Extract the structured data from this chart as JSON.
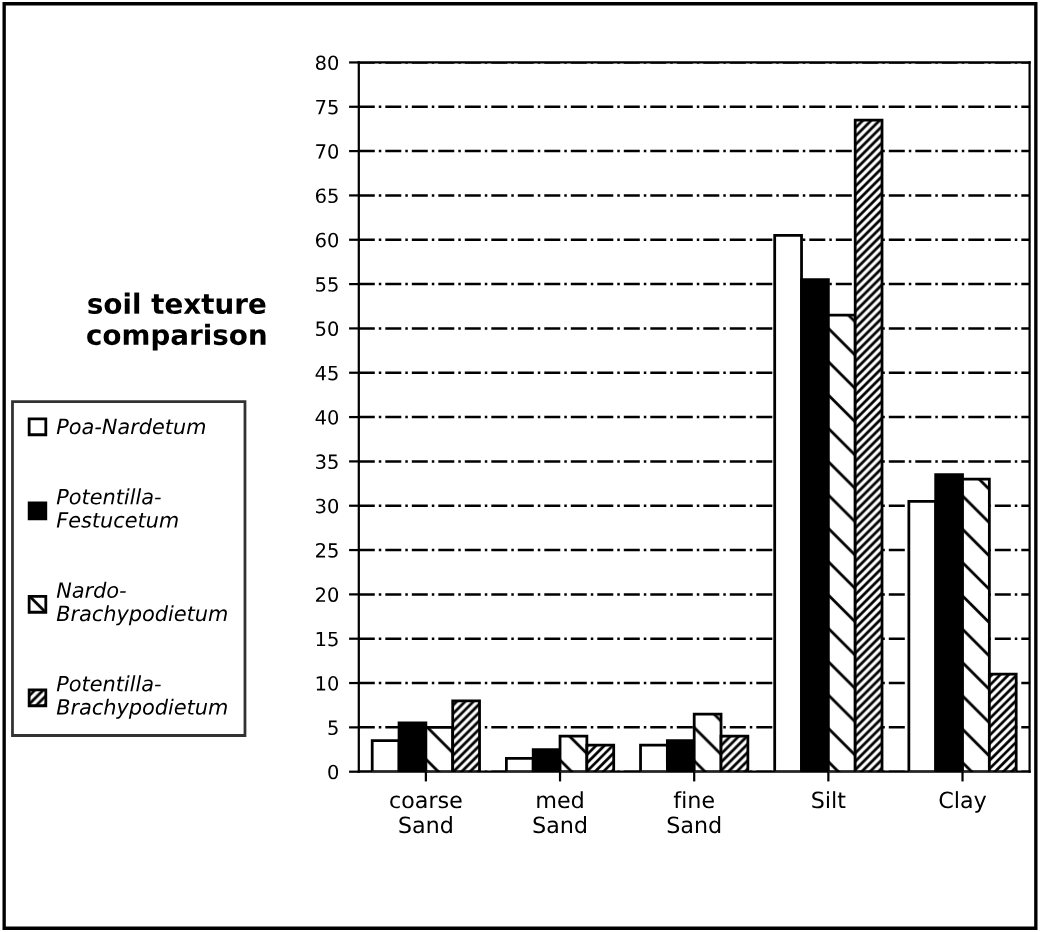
{
  "chart_data": {
    "type": "bar",
    "title": "soil texture comparison",
    "categories": [
      "coarse\nSand",
      "med\nSand",
      "fine\nSand",
      "Silt",
      "Clay"
    ],
    "series": [
      {
        "name": "Poa-Nardetum",
        "color": "#ffffff",
        "values": [
          3.5,
          1.5,
          3,
          60.5,
          30.5
        ]
      },
      {
        "name": "Potentilla-\nFestucetum",
        "color": "#000000",
        "values": [
          5.5,
          2.5,
          3.5,
          55.5,
          33.5
        ]
      },
      {
        "name": "Nardo-\nBrachypodietum",
        "color": "#000000",
        "values": [
          5,
          4,
          6.5,
          51.5,
          33
        ]
      },
      {
        "name": "Potentilla-\nBrachypodietum",
        "color": "#000000",
        "values": [
          8,
          3,
          4,
          73.5,
          11
        ]
      }
    ],
    "ylim": [
      0,
      80
    ],
    "yticks": [
      0,
      5,
      10,
      15,
      20,
      25,
      30,
      35,
      40,
      45,
      50,
      55,
      60,
      65,
      70,
      75,
      80
    ],
    "grid": "y",
    "legend": "left"
  }
}
